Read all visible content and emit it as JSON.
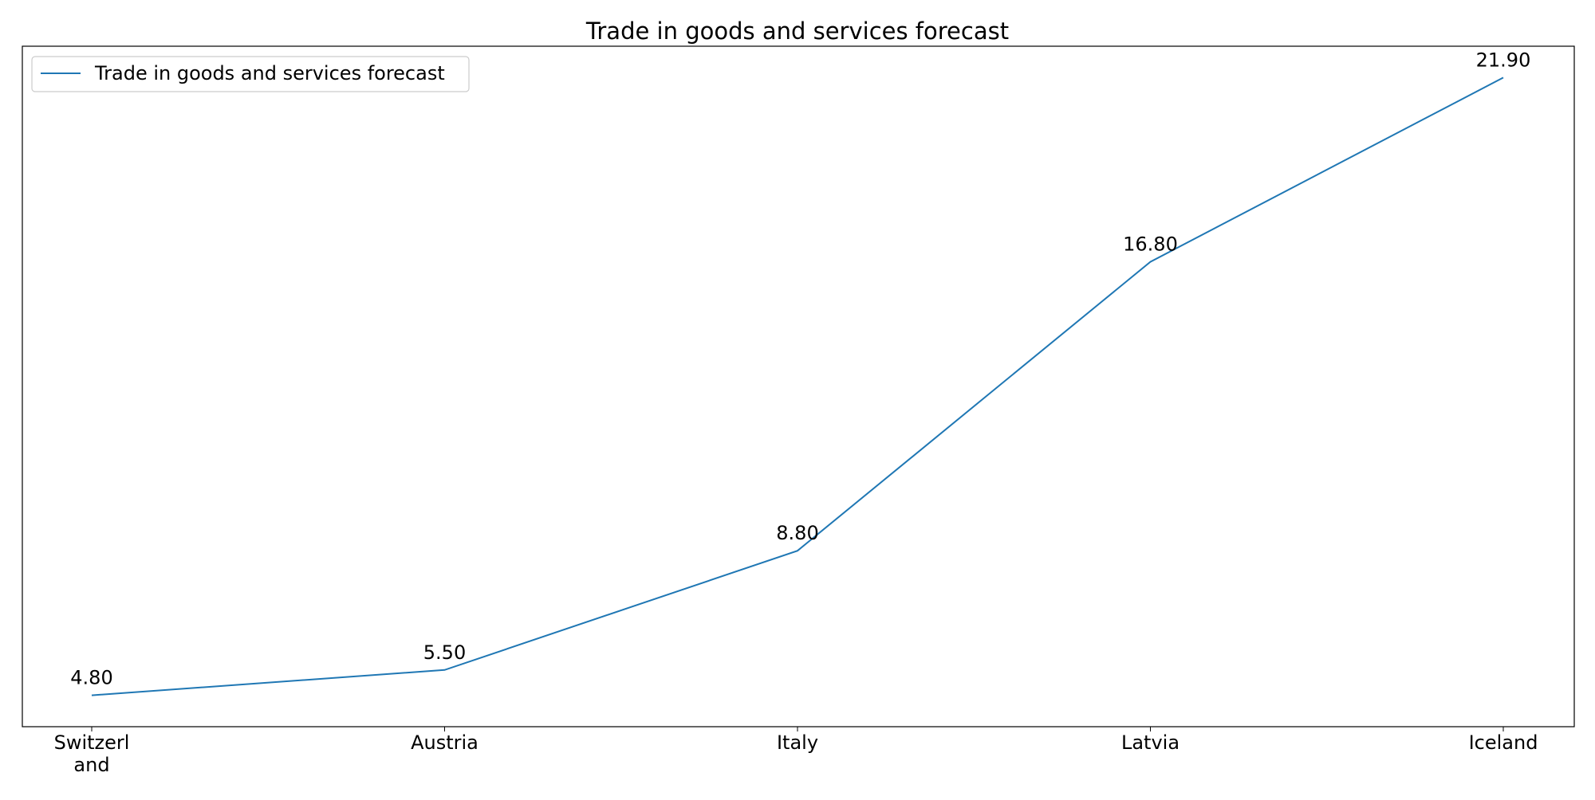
{
  "chart_data": {
    "type": "line",
    "title": "Trade in goods and services forecast",
    "xlabel": "",
    "ylabel": "",
    "categories": [
      "Switzerland",
      "Austria",
      "Italy",
      "Latvia",
      "Iceland"
    ],
    "category_display": [
      [
        "Switzerl",
        "and"
      ],
      [
        "Austria"
      ],
      [
        "Italy"
      ],
      [
        "Latvia"
      ],
      [
        "Iceland"
      ]
    ],
    "series": [
      {
        "name": "Trade in goods and services forecast",
        "values": [
          4.8,
          5.5,
          8.8,
          16.8,
          21.9
        ],
        "value_labels": [
          "4.80",
          "5.50",
          "8.80",
          "16.80",
          "21.90"
        ],
        "color": "#1f77b4"
      }
    ],
    "ylim": [
      3.93,
      22.77
    ],
    "grid": false,
    "legend_position": "upper-left",
    "y_ticks_visible": false
  }
}
